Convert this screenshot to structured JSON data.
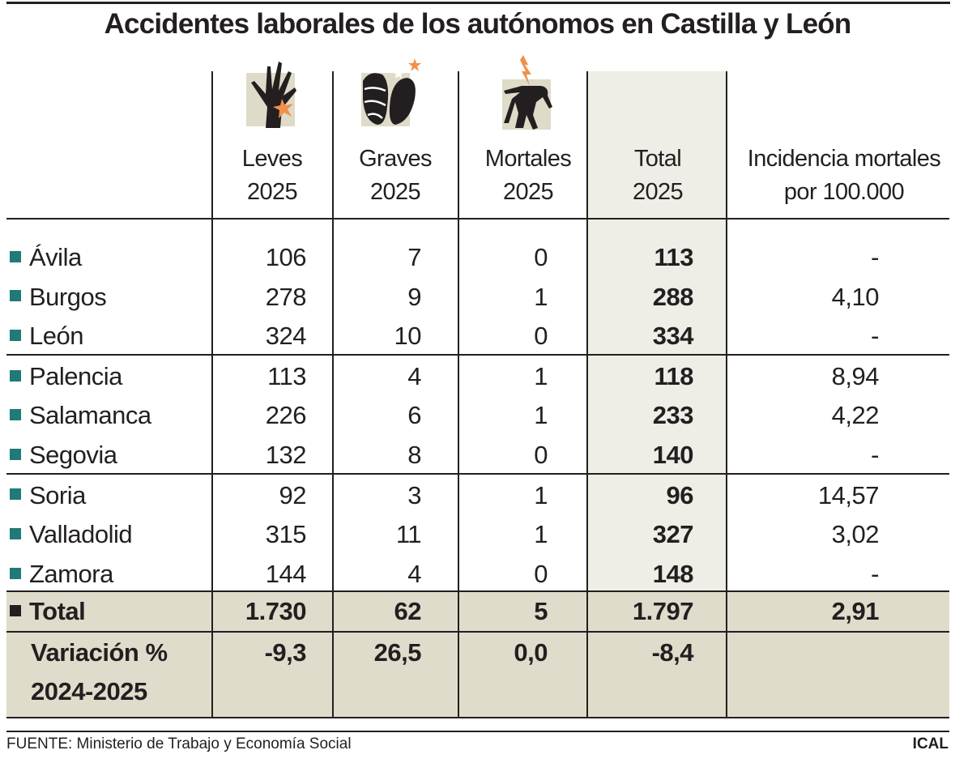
{
  "title": "Accidentes laborales de los autónomos en Castilla y León",
  "columns": [
    {
      "line1": "Leves",
      "line2": "2025",
      "icon": "injured-hand-icon"
    },
    {
      "line1": "Graves",
      "line2": "2025",
      "icon": "bandaged-foot-icon"
    },
    {
      "line1": "Mortales",
      "line2": "2025",
      "icon": "electrocuted-person-icon"
    },
    {
      "line1": "Total",
      "line2": "2025"
    },
    {
      "line1": "Incidencia mortales",
      "line2": "por 100.000"
    }
  ],
  "colors": {
    "province_marker": "#1f7a78",
    "total_marker": "#231f20",
    "total_column_bg": "#eeede6",
    "total_row_bg": "#dfdccb",
    "accent_orange": "#f0904a"
  },
  "chart_data": {
    "type": "table",
    "title": "Accidentes laborales de los autónomos en Castilla y León",
    "headers": [
      "Leves 2025",
      "Graves 2025",
      "Mortales 2025",
      "Total 2025",
      "Incidencia mortales por 100.000"
    ],
    "rows": [
      {
        "label": "Ávila",
        "values": [
          "106",
          "7",
          "0",
          "113",
          "-"
        ]
      },
      {
        "label": "Burgos",
        "values": [
          "278",
          "9",
          "1",
          "288",
          "4,10"
        ]
      },
      {
        "label": "León",
        "values": [
          "324",
          "10",
          "0",
          "334",
          "-"
        ]
      },
      {
        "label": "Palencia",
        "values": [
          "113",
          "4",
          "1",
          "118",
          "8,94"
        ]
      },
      {
        "label": "Salamanca",
        "values": [
          "226",
          "6",
          "1",
          "233",
          "4,22"
        ]
      },
      {
        "label": "Segovia",
        "values": [
          "132",
          "8",
          "0",
          "140",
          "-"
        ]
      },
      {
        "label": "Soria",
        "values": [
          "92",
          "3",
          "1",
          "96",
          "14,57"
        ]
      },
      {
        "label": "Valladolid",
        "values": [
          "315",
          "11",
          "1",
          "327",
          "3,02"
        ]
      },
      {
        "label": "Zamora",
        "values": [
          "144",
          "4",
          "0",
          "148",
          "-"
        ]
      }
    ],
    "total": {
      "label": "Total",
      "values": [
        "1.730",
        "62",
        "5",
        "1.797",
        "2,91"
      ]
    },
    "variation": {
      "label_line1": "Variación %",
      "label_line2": "2024-2025",
      "values": [
        "-9,3",
        "26,5",
        "0,0",
        "-8,4",
        ""
      ]
    }
  },
  "footer": {
    "source": "FUENTE: Ministerio de Trabajo y Economía Social",
    "brand": "ICAL"
  }
}
